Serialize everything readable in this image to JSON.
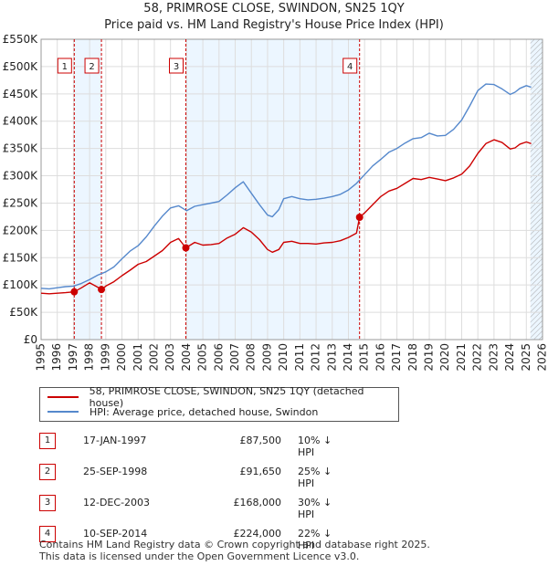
{
  "title_line1": "58, PRIMROSE CLOSE, SWINDON, SN25 1QY",
  "title_line2": "Price paid vs. HM Land Registry's House Price Index (HPI)",
  "colors": {
    "property": "#cc0000",
    "hpi": "#5588cc",
    "shade": "#ddeeff",
    "grid": "#dddddd",
    "marker": "#cc0000"
  },
  "legend": {
    "property_label": "58, PRIMROSE CLOSE, SWINDON, SN25 1QY (detached house)",
    "hpi_label": "HPI: Average price, detached house, Swindon"
  },
  "sales": [
    {
      "num": "1",
      "date": "17-JAN-1997",
      "price": "£87,500",
      "hpi": "10% ↓ HPI"
    },
    {
      "num": "2",
      "date": "25-SEP-1998",
      "price": "£91,650",
      "hpi": "25% ↓ HPI"
    },
    {
      "num": "3",
      "date": "12-DEC-2003",
      "price": "£168,000",
      "hpi": "30% ↓ HPI"
    },
    {
      "num": "4",
      "date": "10-SEP-2014",
      "price": "£224,000",
      "hpi": "22% ↓ HPI"
    }
  ],
  "footer_line1": "Contains HM Land Registry data © Crown copyright and database right 2025.",
  "footer_line2": "This data is licensed under the Open Government Licence v3.0.",
  "chart_data": {
    "type": "line",
    "title": "58, PRIMROSE CLOSE, SWINDON, SN25 1QY",
    "subtitle": "Price paid vs. HM Land Registry's House Price Index (HPI)",
    "xlabel": "",
    "ylabel": "",
    "xlim": [
      1995,
      2026
    ],
    "ylim": [
      0,
      550000
    ],
    "grid": true,
    "x_ticks": [
      1995,
      1996,
      1997,
      1998,
      1999,
      2000,
      2001,
      2002,
      2003,
      2004,
      2005,
      2006,
      2007,
      2008,
      2009,
      2010,
      2011,
      2012,
      2013,
      2014,
      2015,
      2016,
      2017,
      2018,
      2019,
      2020,
      2021,
      2022,
      2023,
      2024,
      2025,
      2026
    ],
    "y_ticks": [
      0,
      50000,
      100000,
      150000,
      200000,
      250000,
      300000,
      350000,
      400000,
      450000,
      500000,
      550000
    ],
    "y_tick_labels": [
      "£0",
      "£50K",
      "£100K",
      "£150K",
      "£200K",
      "£250K",
      "£300K",
      "£350K",
      "£400K",
      "£450K",
      "£500K",
      "£550K"
    ],
    "shaded_ranges": [
      [
        1997.05,
        1998.73
      ],
      [
        2003.95,
        2014.69
      ],
      [
        2025.25,
        2026
      ]
    ],
    "hatched_range": [
      2025.25,
      2026
    ],
    "series": [
      {
        "name": "58, PRIMROSE CLOSE, SWINDON, SN25 1QY (detached house)",
        "x": [
          1995,
          1995.5,
          1996,
          1996.5,
          1997.05,
          1997.5,
          1998,
          1998.5,
          1998.73,
          1999,
          1999.5,
          2000,
          2000.5,
          2001,
          2001.5,
          2002,
          2002.5,
          2003,
          2003.5,
          2003.95,
          2004.5,
          2005,
          2005.5,
          2006,
          2006.5,
          2007,
          2007.5,
          2008,
          2008.5,
          2009,
          2009.3,
          2009.7,
          2010,
          2010.5,
          2011,
          2011.5,
          2012,
          2012.5,
          2013,
          2013.5,
          2014,
          2014.5,
          2014.69,
          2015,
          2015.5,
          2016,
          2016.5,
          2017,
          2017.5,
          2018,
          2018.5,
          2019,
          2019.5,
          2020,
          2020.5,
          2021,
          2021.5,
          2022,
          2022.5,
          2023,
          2023.5,
          2024,
          2024.3,
          2024.6,
          2025,
          2025.3
        ],
        "values": [
          85000,
          84000,
          85000,
          86000,
          87500,
          95000,
          104000,
          96000,
          91650,
          98000,
          106000,
          117000,
          127000,
          138000,
          143000,
          153000,
          163000,
          178000,
          185000,
          168000,
          178000,
          173000,
          174000,
          176000,
          186000,
          193000,
          205000,
          197000,
          183000,
          165000,
          160000,
          165000,
          178000,
          180000,
          176000,
          176000,
          175000,
          177000,
          178000,
          181000,
          187000,
          195000,
          224000,
          232000,
          247000,
          262000,
          272000,
          277000,
          286000,
          295000,
          293000,
          297000,
          294000,
          291000,
          296000,
          303000,
          318000,
          341000,
          359000,
          366000,
          361000,
          349000,
          351000,
          358000,
          362000,
          359000
        ]
      },
      {
        "name": "HPI: Average price, detached house, Swindon",
        "x": [
          1995,
          1995.5,
          1996,
          1996.5,
          1997,
          1997.5,
          1998,
          1998.5,
          1999,
          1999.5,
          2000,
          2000.5,
          2001,
          2001.5,
          2002,
          2002.5,
          2003,
          2003.5,
          2004,
          2004.5,
          2005,
          2005.5,
          2006,
          2006.5,
          2007,
          2007.5,
          2008,
          2008.5,
          2009,
          2009.3,
          2009.7,
          2010,
          2010.5,
          2011,
          2011.5,
          2012,
          2012.5,
          2013,
          2013.5,
          2014,
          2014.5,
          2015,
          2015.5,
          2016,
          2016.5,
          2017,
          2017.5,
          2018,
          2018.5,
          2019,
          2019.5,
          2020,
          2020.5,
          2021,
          2021.5,
          2022,
          2022.5,
          2023,
          2023.5,
          2024,
          2024.3,
          2024.6,
          2025,
          2025.3
        ],
        "values": [
          94000,
          93000,
          95000,
          97000,
          98000,
          103000,
          110000,
          118000,
          124000,
          133000,
          148000,
          162000,
          172000,
          188000,
          208000,
          226000,
          241000,
          245000,
          236000,
          244000,
          247000,
          250000,
          253000,
          265000,
          278000,
          289000,
          268000,
          247000,
          228000,
          225000,
          238000,
          258000,
          262000,
          258000,
          256000,
          257000,
          259000,
          262000,
          266000,
          274000,
          286000,
          302000,
          318000,
          330000,
          343000,
          350000,
          360000,
          368000,
          370000,
          378000,
          373000,
          374000,
          385000,
          402000,
          428000,
          456000,
          468000,
          467000,
          459000,
          449000,
          453000,
          460000,
          465000,
          462000
        ]
      }
    ],
    "sale_markers": [
      {
        "label": "1",
        "x": 1997.05,
        "y": 87500
      },
      {
        "label": "2",
        "x": 1998.73,
        "y": 91650
      },
      {
        "label": "3",
        "x": 2003.95,
        "y": 168000
      },
      {
        "label": "4",
        "x": 2014.69,
        "y": 224000
      }
    ]
  }
}
